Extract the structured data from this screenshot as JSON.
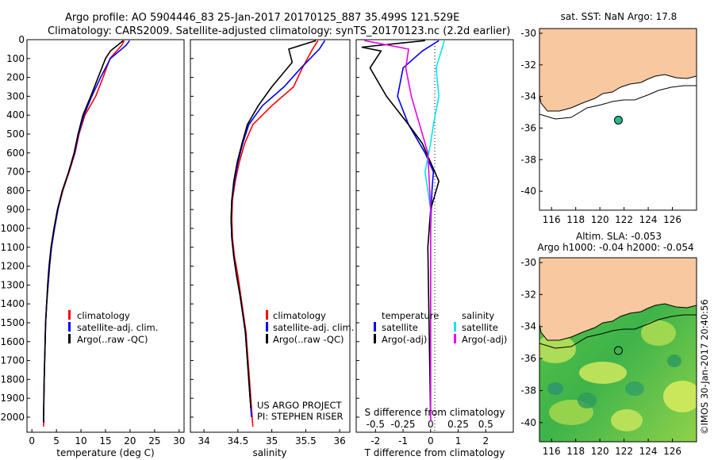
{
  "header": {
    "line1": "Argo profile: AO 5904446_83 25-Jan-2017 20170125_887 35.499S 121.529E",
    "line2": "Climatology: CARS2009. Satellite-adjusted climatology: synTS_20170123.nc (2.2d earlier)"
  },
  "colors": {
    "climatology": "#ff0000",
    "satellite": "#0000ff",
    "argo": "#000000",
    "satellite_salinity": "#00e5ee",
    "argo_salinity": "#ee00ee",
    "land": "#f8c8a0",
    "station_marker": "#2bb58f"
  },
  "chart_data": [
    {
      "id": "temperature",
      "type": "line",
      "xlabel": "temperature (deg C)",
      "xlim": [
        -1,
        31
      ],
      "xticks": [
        "0",
        "5",
        "10",
        "15",
        "20",
        "25",
        "30"
      ],
      "ylim": [
        2080,
        0
      ],
      "yticks": [
        "0",
        "100",
        "200",
        "300",
        "400",
        "500",
        "600",
        "700",
        "800",
        "900",
        "1000",
        "1100",
        "1200",
        "1300",
        "1400",
        "1500",
        "1600",
        "1700",
        "1800",
        "1900",
        "2000"
      ],
      "legend": [
        "climatology",
        "satellite-adj. clim.",
        "Argo(..raw -QC)"
      ],
      "series": [
        {
          "name": "climatology",
          "color": "#ff0000",
          "points": [
            [
              18.8,
              5
            ],
            [
              18.3,
              30
            ],
            [
              15.9,
              100
            ],
            [
              14.5,
              200
            ],
            [
              13.0,
              300
            ],
            [
              10.8,
              400
            ],
            [
              9.6,
              500
            ],
            [
              8.8,
              600
            ],
            [
              7.6,
              700
            ],
            [
              6.3,
              800
            ],
            [
              5.3,
              900
            ],
            [
              4.6,
              1000
            ],
            [
              4.0,
              1100
            ],
            [
              3.6,
              1200
            ],
            [
              3.3,
              1300
            ],
            [
              3.0,
              1400
            ],
            [
              2.8,
              1500
            ],
            [
              2.7,
              1600
            ],
            [
              2.6,
              1700
            ],
            [
              2.5,
              1800
            ],
            [
              2.45,
              1900
            ],
            [
              2.4,
              2000
            ],
            [
              2.4,
              2050
            ]
          ]
        },
        {
          "name": "satellite-adj. clim.",
          "color": "#0000ff",
          "points": [
            [
              19.9,
              5
            ],
            [
              19.2,
              30
            ],
            [
              16.0,
              100
            ],
            [
              14.0,
              200
            ],
            [
              12.2,
              300
            ],
            [
              10.6,
              400
            ],
            [
              9.5,
              500
            ],
            [
              8.7,
              600
            ],
            [
              7.5,
              700
            ],
            [
              6.2,
              800
            ],
            [
              5.3,
              900
            ],
            [
              4.6,
              1000
            ],
            [
              4.0,
              1100
            ],
            [
              3.6,
              1200
            ],
            [
              3.3,
              1300
            ],
            [
              3.0,
              1400
            ],
            [
              2.8,
              1500
            ],
            [
              2.7,
              1600
            ],
            [
              2.6,
              1700
            ],
            [
              2.5,
              1800
            ],
            [
              2.45,
              1900
            ],
            [
              2.4,
              2000
            ],
            [
              2.4,
              2030
            ]
          ]
        },
        {
          "name": "Argo(..raw -QC)",
          "color": "#000000",
          "points": [
            [
              18.6,
              5
            ],
            [
              16.0,
              60
            ],
            [
              15.0,
              100
            ],
            [
              13.5,
              200
            ],
            [
              12.0,
              300
            ],
            [
              10.4,
              400
            ],
            [
              9.4,
              500
            ],
            [
              8.6,
              600
            ],
            [
              7.5,
              700
            ],
            [
              6.2,
              800
            ],
            [
              5.2,
              900
            ],
            [
              4.5,
              1000
            ],
            [
              3.9,
              1100
            ],
            [
              3.5,
              1200
            ],
            [
              3.2,
              1300
            ],
            [
              3.0,
              1400
            ],
            [
              2.8,
              1500
            ],
            [
              2.7,
              1600
            ],
            [
              2.6,
              1700
            ],
            [
              2.5,
              1800
            ],
            [
              2.45,
              1900
            ],
            [
              2.4,
              2000
            ],
            [
              2.4,
              2025
            ]
          ]
        }
      ]
    },
    {
      "id": "salinity",
      "type": "line",
      "xlabel": "salinity",
      "xlim": [
        33.8,
        36.15
      ],
      "xticks": [
        "34",
        "34.5",
        "35",
        "35.5",
        "36"
      ],
      "ylim": [
        2080,
        0
      ],
      "legend": [
        "climatology",
        "satellite-adj. clim.",
        "Argo(..raw -QC)"
      ],
      "annotation": [
        "US ARGO PROJECT",
        "PI: STEPHEN RISER"
      ],
      "series": [
        {
          "name": "climatology",
          "color": "#ff0000",
          "points": [
            [
              35.68,
              5
            ],
            [
              35.6,
              50
            ],
            [
              35.45,
              150
            ],
            [
              35.32,
              250
            ],
            [
              35.0,
              350
            ],
            [
              34.72,
              450
            ],
            [
              34.6,
              550
            ],
            [
              34.52,
              650
            ],
            [
              34.46,
              750
            ],
            [
              34.42,
              850
            ],
            [
              34.41,
              950
            ],
            [
              34.42,
              1050
            ],
            [
              34.45,
              1150
            ],
            [
              34.5,
              1250
            ],
            [
              34.54,
              1350
            ],
            [
              34.58,
              1450
            ],
            [
              34.62,
              1550
            ],
            [
              34.64,
              1650
            ],
            [
              34.66,
              1750
            ],
            [
              34.68,
              1850
            ],
            [
              34.7,
              1950
            ],
            [
              34.72,
              2050
            ]
          ]
        },
        {
          "name": "satellite-adj. clim.",
          "color": "#0000ff",
          "points": [
            [
              35.78,
              5
            ],
            [
              35.7,
              50
            ],
            [
              35.43,
              150
            ],
            [
              35.18,
              250
            ],
            [
              34.86,
              350
            ],
            [
              34.66,
              450
            ],
            [
              34.57,
              550
            ],
            [
              34.5,
              650
            ],
            [
              34.45,
              750
            ],
            [
              34.41,
              850
            ],
            [
              34.4,
              950
            ],
            [
              34.41,
              1050
            ],
            [
              34.44,
              1150
            ],
            [
              34.48,
              1250
            ],
            [
              34.53,
              1350
            ],
            [
              34.57,
              1450
            ],
            [
              34.61,
              1550
            ],
            [
              34.63,
              1650
            ],
            [
              34.65,
              1750
            ],
            [
              34.67,
              1850
            ],
            [
              34.69,
              1950
            ],
            [
              34.7,
              2000
            ]
          ]
        },
        {
          "name": "Argo(..raw -QC)",
          "color": "#000000",
          "points": [
            [
              35.65,
              5
            ],
            [
              35.25,
              50
            ],
            [
              35.3,
              120
            ],
            [
              35.0,
              250
            ],
            [
              34.8,
              350
            ],
            [
              34.64,
              450
            ],
            [
              34.56,
              550
            ],
            [
              34.49,
              650
            ],
            [
              34.44,
              750
            ],
            [
              34.41,
              850
            ],
            [
              34.4,
              950
            ],
            [
              34.41,
              1050
            ],
            [
              34.44,
              1150
            ],
            [
              34.48,
              1250
            ],
            [
              34.53,
              1350
            ],
            [
              34.57,
              1450
            ],
            [
              34.61,
              1550
            ],
            [
              34.63,
              1650
            ],
            [
              34.65,
              1750
            ],
            [
              34.67,
              1850
            ],
            [
              34.69,
              1950
            ]
          ]
        }
      ]
    },
    {
      "id": "difference",
      "type": "line",
      "xlabel": "T difference from climatology",
      "xlabel_top": "S difference from climatology",
      "xlim": [
        -2.7,
        3.0
      ],
      "xticks": [
        "-2",
        "-1",
        "0",
        "1",
        "2"
      ],
      "xticks_s": [
        "-0.5",
        "-0.25",
        "0",
        "0.25",
        "0.5"
      ],
      "ylim": [
        2080,
        0
      ],
      "legend_groups": [
        {
          "title": "temperature",
          "items": [
            "satellite",
            "Argo(-adj)"
          ]
        },
        {
          "title": "salinity",
          "items": [
            "satellite",
            "Argo(-adj)"
          ]
        }
      ],
      "series": [
        {
          "name": "temperature satellite",
          "color": "#0000ff",
          "points": [
            [
              0.3,
              5
            ],
            [
              -0.3,
              60
            ],
            [
              -1.0,
              150
            ],
            [
              -1.2,
              300
            ],
            [
              -0.8,
              450
            ],
            [
              -0.2,
              600
            ],
            [
              0.1,
              700
            ],
            [
              0.05,
              800
            ],
            [
              0.0,
              1000
            ],
            [
              0.0,
              2020
            ]
          ]
        },
        {
          "name": "temperature Argo(-adj)",
          "color": "#000000",
          "points": [
            [
              -0.2,
              5
            ],
            [
              -2.5,
              40
            ],
            [
              -1.8,
              60
            ],
            [
              -2.2,
              150
            ],
            [
              -1.6,
              300
            ],
            [
              -0.8,
              450
            ],
            [
              -0.3,
              550
            ],
            [
              0.3,
              750
            ],
            [
              0.0,
              900
            ],
            [
              -0.1,
              1100
            ],
            [
              0.0,
              2020
            ]
          ]
        },
        {
          "name": "salinity satellite",
          "color": "#00e5ee",
          "points": [
            [
              0.5,
              5
            ],
            [
              0.2,
              150
            ],
            [
              0.3,
              300
            ],
            [
              0.1,
              450
            ],
            [
              0.0,
              550
            ],
            [
              -0.2,
              700
            ],
            [
              0.0,
              900
            ],
            [
              0.0,
              2020
            ]
          ]
        },
        {
          "name": "salinity Argo(-adj)",
          "color": "#ee00ee",
          "points": [
            [
              -2.4,
              5
            ],
            [
              -0.8,
              50
            ],
            [
              -0.9,
              150
            ],
            [
              -0.7,
              300
            ],
            [
              -0.4,
              450
            ],
            [
              -0.1,
              600
            ],
            [
              0.0,
              900
            ],
            [
              0.0,
              2020
            ]
          ]
        }
      ]
    },
    {
      "id": "sst-map",
      "type": "heatmap",
      "title": "sat. SST: NaN Argo: 17.8",
      "xticks": [
        "116",
        "118",
        "120",
        "122",
        "124",
        "126"
      ],
      "yticks": [
        "-30",
        "-32",
        "-34",
        "-36",
        "-38",
        "-40"
      ],
      "xlim": [
        115,
        128
      ],
      "ylim": [
        -41.2,
        -29.7
      ],
      "station": {
        "lon": 121.53,
        "lat": -35.5
      }
    },
    {
      "id": "sla-map",
      "type": "heatmap",
      "title": "Altim. SLA: -0.053",
      "subtitle": "Argo h1000: -0.04 h2000: -0.054",
      "xticks": [
        "116",
        "118",
        "120",
        "122",
        "124",
        "126"
      ],
      "yticks": [
        "-30",
        "-32",
        "-34",
        "-36",
        "-38",
        "-40"
      ],
      "xlim": [
        115,
        128
      ],
      "ylim": [
        -41.2,
        -29.7
      ],
      "station": {
        "lon": 121.53,
        "lat": -35.5
      }
    }
  ],
  "footer": {
    "credit": "©IMOS 30-Jan-2017 20:40:56"
  }
}
